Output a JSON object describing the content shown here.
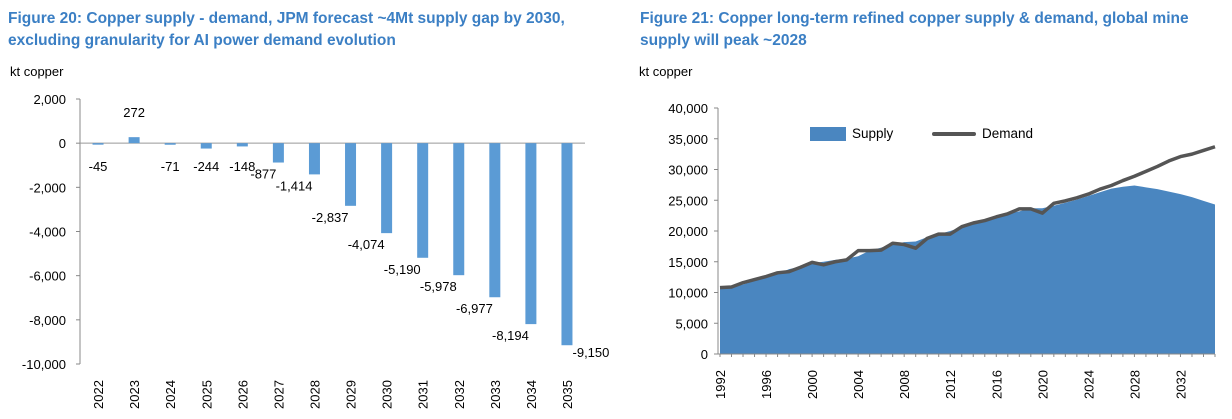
{
  "left": {
    "title": "Figure 20: Copper supply - demand, JPM forecast ~4Mt supply gap by 2030, excluding granularity for AI power demand evolution",
    "unit": "kt copper"
  },
  "right": {
    "title": "Figure 21: Copper long-term refined copper supply & demand, global mine supply will peak ~2028",
    "unit": "kt copper"
  },
  "chart_data": [
    {
      "type": "bar",
      "title": "Figure 20: Copper supply - demand, JPM forecast ~4Mt supply gap by 2030, excluding granularity for AI power demand evolution",
      "ylabel": "kt copper",
      "categories": [
        "2022",
        "2023",
        "2024",
        "2025",
        "2026",
        "2027",
        "2028",
        "2029",
        "2030",
        "2031",
        "2032",
        "2033",
        "2034",
        "2035"
      ],
      "values": [
        -45,
        272,
        -71,
        -244,
        -148,
        -877,
        -1414,
        -2837,
        -4074,
        -5190,
        -5978,
        -6977,
        -8194,
        -9150
      ],
      "data_labels": [
        "-45",
        "272",
        "-71",
        "-244",
        "-148",
        "-877",
        "-1,414",
        "-2,837",
        "-4,074",
        "-5,190",
        "-5,978",
        "-6,977",
        "-8,194",
        "-9,150"
      ],
      "ylim": [
        -10000,
        2000
      ],
      "yticks": [
        2000,
        0,
        -2000,
        -4000,
        -6000,
        -8000,
        -10000
      ],
      "ytick_labels": [
        "2,000",
        "0",
        "-2,000",
        "-4,000",
        "-6,000",
        "-8,000",
        "-10,000"
      ],
      "bar_color": "#5b9bd5",
      "grid": false
    },
    {
      "type": "area",
      "title": "Figure 21: Copper long-term refined copper supply & demand, global mine supply will peak ~2028",
      "ylabel": "kt copper",
      "x": [
        1992,
        1993,
        1994,
        1995,
        1996,
        1997,
        1998,
        1999,
        2000,
        2001,
        2002,
        2003,
        2004,
        2005,
        2006,
        2007,
        2008,
        2009,
        2010,
        2011,
        2012,
        2013,
        2014,
        2015,
        2016,
        2017,
        2018,
        2019,
        2020,
        2021,
        2022,
        2023,
        2024,
        2025,
        2026,
        2027,
        2028,
        2029,
        2030,
        2031,
        2032,
        2033,
        2034,
        2035
      ],
      "series": [
        {
          "name": "Supply",
          "kind": "area",
          "color": "#4a86c0",
          "values": [
            11000,
            11000,
            11300,
            11900,
            12500,
            13000,
            13800,
            14200,
            14800,
            15000,
            15300,
            15500,
            15900,
            16800,
            17300,
            17800,
            18200,
            18300,
            19000,
            19500,
            20000,
            20600,
            21200,
            21700,
            22200,
            22800,
            23200,
            23700,
            23700,
            24100,
            24600,
            25100,
            25700,
            26300,
            26900,
            27200,
            27400,
            27100,
            26800,
            26400,
            26000,
            25500,
            24900,
            24300
          ]
        },
        {
          "name": "Demand",
          "kind": "line",
          "color": "#555555",
          "values": [
            10800,
            10900,
            11600,
            12100,
            12600,
            13200,
            13400,
            14100,
            14900,
            14500,
            15000,
            15300,
            16800,
            16800,
            16900,
            18000,
            17800,
            17200,
            18800,
            19500,
            19500,
            20700,
            21300,
            21700,
            22300,
            22800,
            23600,
            23600,
            22900,
            24500,
            24900,
            25400,
            26000,
            26800,
            27400,
            28200,
            28900,
            29700,
            30500,
            31400,
            32100,
            32500,
            33100,
            33700
          ]
        }
      ],
      "ylim": [
        0,
        40000
      ],
      "yticks": [
        0,
        5000,
        10000,
        15000,
        20000,
        25000,
        30000,
        35000,
        40000
      ],
      "ytick_labels": [
        "0",
        "5,000",
        "10,000",
        "15,000",
        "20,000",
        "25,000",
        "30,000",
        "35,000",
        "40,000"
      ],
      "xticks": [
        1992,
        1996,
        2000,
        2004,
        2008,
        2012,
        2016,
        2020,
        2024,
        2028,
        2032
      ],
      "legend": "top-center",
      "grid": false
    }
  ]
}
